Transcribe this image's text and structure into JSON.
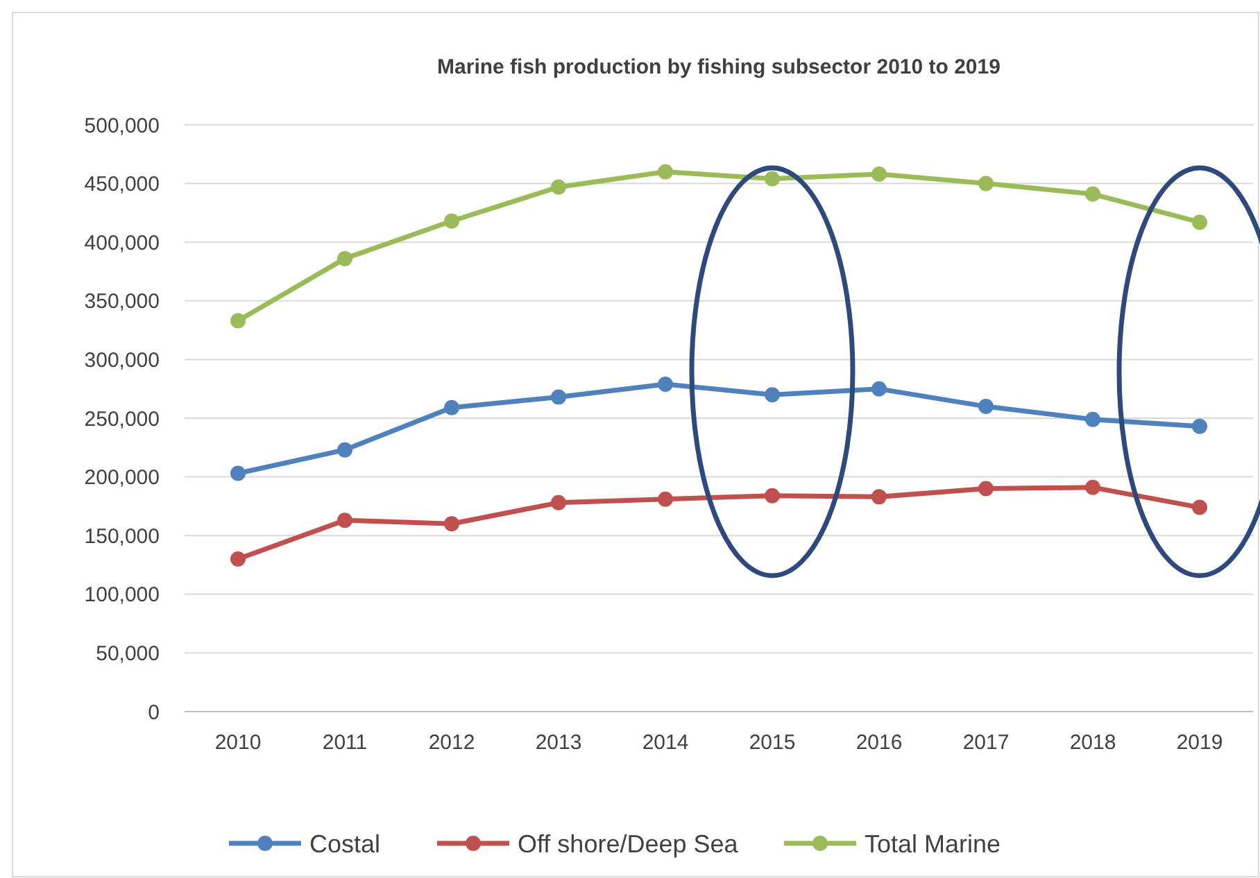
{
  "chart_data": {
    "type": "line",
    "title": "Marine fish production by fishing subsector 2010 to 2019",
    "categories": [
      "2010",
      "2011",
      "2012",
      "2013",
      "2014",
      "2015",
      "2016",
      "2017",
      "2018",
      "2019"
    ],
    "series": [
      {
        "name": "Costal",
        "color": "#4f81bd",
        "values": [
          203000,
          223000,
          259000,
          268000,
          279000,
          270000,
          275000,
          260000,
          249000,
          243000
        ]
      },
      {
        "name": "Off shore/Deep Sea",
        "color": "#c0504d",
        "values": [
          130000,
          163000,
          160000,
          178000,
          181000,
          184000,
          183000,
          190000,
          191000,
          174000
        ]
      },
      {
        "name": "Total Marine",
        "color": "#9bbb59",
        "values": [
          333000,
          386000,
          418000,
          447000,
          460000,
          454000,
          458000,
          450000,
          441000,
          417000
        ]
      }
    ],
    "ylim": [
      0,
      500000
    ],
    "yticks": [
      {
        "value": 0,
        "label": "0"
      },
      {
        "value": 50000,
        "label": "50,000"
      },
      {
        "value": 100000,
        "label": "100,000"
      },
      {
        "value": 150000,
        "label": "150,000"
      },
      {
        "value": 200000,
        "label": "200,000"
      },
      {
        "value": 250000,
        "label": "250,000"
      },
      {
        "value": 300000,
        "label": "300,000"
      },
      {
        "value": 350000,
        "label": "350,000"
      },
      {
        "value": 400000,
        "label": "400,000"
      },
      {
        "value": 450000,
        "label": "450,000"
      },
      {
        "value": 500000,
        "label": "500,000"
      }
    ],
    "grid": "y",
    "legend": "bottom",
    "marker": "circle",
    "line_style": "solid"
  }
}
